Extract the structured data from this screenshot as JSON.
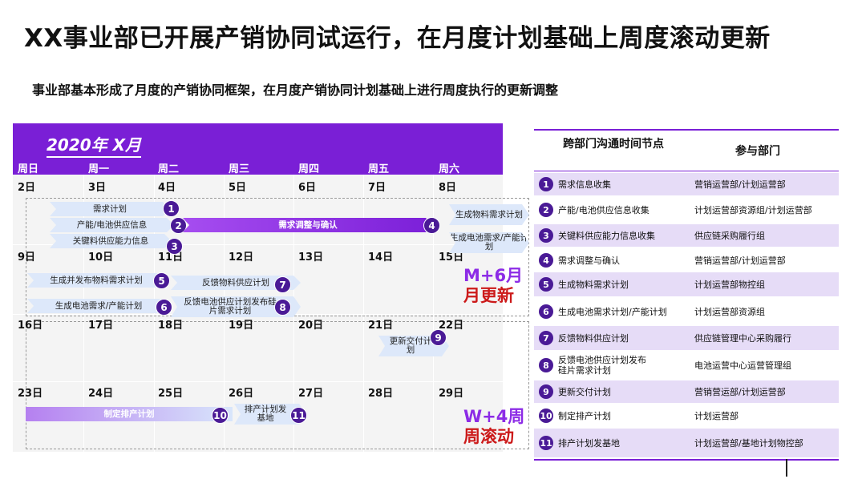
{
  "title": "XX事业部已开展产销协同试运行，在月度计划基础上周度滚动更新",
  "subtitle": "事业部基本形成了月度的产销协同框架，在月度产销协同计划基础上进行周度执行的更新调整",
  "calendar": {
    "month_label": "2020年 X月",
    "weekdays": [
      "周日",
      "周一",
      "周二",
      "周三",
      "周四",
      "周五",
      "周六"
    ],
    "weeks": [
      [
        "2日",
        "3日",
        "4日",
        "5日",
        "6日",
        "7日",
        "8日"
      ],
      [
        "9日",
        "10日",
        "11日",
        "12日",
        "13日",
        "14日",
        "15日"
      ],
      [
        "16日",
        "17日",
        "18日",
        "19日",
        "20日",
        "21日",
        "22日"
      ],
      [
        "23日",
        "24日",
        "25日",
        "26日",
        "27日",
        "28日",
        "29日"
      ]
    ],
    "arrows": {
      "a1": "需求计划",
      "a2": "产能/电池供应信息",
      "a3": "关键料供应能力信息",
      "a4": "需求调整与确认",
      "a4b": "生成物料需求计划",
      "a4c": "生成电池需求/产能计划",
      "a5": "生成并发布物料需求计划",
      "a6": "生成电池需求/产能计划",
      "a7": "反馈物料供应计划",
      "a8": "反馈电池供应计划发布硅片需求计划",
      "a9": "更新交付计划",
      "a10": "制定排产计划",
      "a11": "排产计划发基地"
    },
    "numbers": [
      "1",
      "2",
      "3",
      "4",
      "5",
      "6",
      "7",
      "8",
      "9",
      "10",
      "11"
    ],
    "tags": {
      "monthly_l1": "M+6月",
      "monthly_l2": "月更新",
      "weekly_l1": "W+4周",
      "weekly_l2": "周滚动"
    }
  },
  "table": {
    "header_node": "跨部门沟通时间节点",
    "header_dept": "参与部门",
    "rows": [
      {
        "num": "1",
        "node": "需求信息收集",
        "dept": "营销运营部/计划运营部"
      },
      {
        "num": "2",
        "node": "产能/电池供应信息收集",
        "dept": "计划运营部资源组/计划运营部"
      },
      {
        "num": "3",
        "node": "关键料供应能力信息收集",
        "dept": "供应链采购履行组"
      },
      {
        "num": "4",
        "node": "需求调整与确认",
        "dept": "营销运营部/计划运营部"
      },
      {
        "num": "5",
        "node": "生成物料需求计划",
        "dept": "计划运营部物控组"
      },
      {
        "num": "6",
        "node": "生成电池需求计划/产能计划",
        "dept": "计划运营部资源组"
      },
      {
        "num": "7",
        "node": "反馈物料供应计划",
        "dept": "供应链管理中心采购履行"
      },
      {
        "num": "8",
        "node": "反馈电池供应计划发布硅片需求计划",
        "dept": "电池运营中心运营管理组"
      },
      {
        "num": "9",
        "node": "更新交付计划",
        "dept": "营销营运部/计划运营部"
      },
      {
        "num": "10",
        "node": "制定排产计划",
        "dept": "计划运营部"
      },
      {
        "num": "11",
        "node": "排产计划发基地",
        "dept": "计划运营部/基地计划物控部"
      }
    ]
  }
}
